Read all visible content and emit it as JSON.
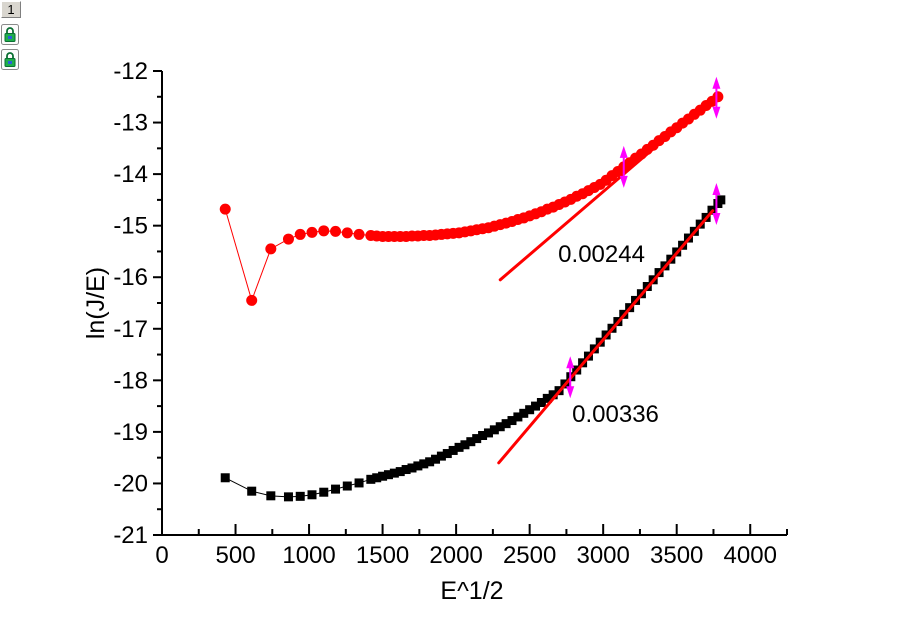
{
  "window": {
    "layer_button": "1",
    "icons": [
      "padlock-icon",
      "padlock-icon"
    ]
  },
  "chart_data": {
    "type": "scatter",
    "title": "",
    "xlabel": "E^1/2",
    "ylabel": "ln(J/E)",
    "xlim": [
      0,
      4250
    ],
    "ylim": [
      -21,
      -12
    ],
    "grid": false,
    "legend_position": "none",
    "x_major_ticks": [
      0,
      500,
      1000,
      1500,
      2000,
      2500,
      3000,
      3500,
      4000
    ],
    "x_minor_ticks": [
      250,
      750,
      1250,
      1750,
      2250,
      2750,
      3250,
      3750,
      4250
    ],
    "y_major_ticks": [
      -21,
      -20,
      -19,
      -18,
      -17,
      -16,
      -15,
      -14,
      -13,
      -12
    ],
    "y_minor_ticks": [
      -20.5,
      -19.5,
      -18.5,
      -17.5,
      -16.5,
      -15.5,
      -14.5,
      -13.5,
      -12.5
    ],
    "series": [
      {
        "name": "black-squares-series",
        "marker": "square",
        "color": "#000000",
        "line_width": 1,
        "marker_size": 9,
        "points": [
          [
            430,
            -19.89
          ],
          [
            610,
            -20.15
          ],
          [
            740,
            -20.24
          ],
          [
            860,
            -20.26
          ],
          [
            940,
            -20.25
          ],
          [
            1020,
            -20.22
          ],
          [
            1100,
            -20.17
          ],
          [
            1180,
            -20.11
          ],
          [
            1260,
            -20.05
          ],
          [
            1340,
            -19.99
          ],
          [
            1420,
            -19.92
          ],
          [
            1460,
            -19.89
          ],
          [
            1500,
            -19.86
          ],
          [
            1540,
            -19.83
          ],
          [
            1580,
            -19.8
          ],
          [
            1620,
            -19.77
          ],
          [
            1660,
            -19.73
          ],
          [
            1700,
            -19.7
          ],
          [
            1740,
            -19.66
          ],
          [
            1780,
            -19.62
          ],
          [
            1820,
            -19.58
          ],
          [
            1860,
            -19.53
          ],
          [
            1900,
            -19.47
          ],
          [
            1940,
            -19.42
          ],
          [
            1980,
            -19.36
          ],
          [
            2020,
            -19.3
          ],
          [
            2060,
            -19.25
          ],
          [
            2100,
            -19.19
          ],
          [
            2140,
            -19.13
          ],
          [
            2180,
            -19.07
          ],
          [
            2220,
            -19.02
          ],
          [
            2260,
            -18.96
          ],
          [
            2300,
            -18.9
          ],
          [
            2340,
            -18.84
          ],
          [
            2380,
            -18.78
          ],
          [
            2420,
            -18.71
          ],
          [
            2460,
            -18.64
          ],
          [
            2500,
            -18.57
          ],
          [
            2540,
            -18.5
          ],
          [
            2580,
            -18.43
          ],
          [
            2620,
            -18.35
          ],
          [
            2660,
            -18.28
          ],
          [
            2700,
            -18.2
          ],
          [
            2740,
            -18.07
          ],
          [
            2780,
            -17.93
          ],
          [
            2820,
            -17.8
          ],
          [
            2860,
            -17.66
          ],
          [
            2900,
            -17.53
          ],
          [
            2940,
            -17.39
          ],
          [
            2980,
            -17.26
          ],
          [
            3020,
            -17.12
          ],
          [
            3060,
            -16.99
          ],
          [
            3100,
            -16.86
          ],
          [
            3140,
            -16.72
          ],
          [
            3180,
            -16.59
          ],
          [
            3220,
            -16.45
          ],
          [
            3260,
            -16.32
          ],
          [
            3300,
            -16.18
          ],
          [
            3340,
            -16.05
          ],
          [
            3380,
            -15.91
          ],
          [
            3420,
            -15.78
          ],
          [
            3460,
            -15.65
          ],
          [
            3500,
            -15.51
          ],
          [
            3540,
            -15.38
          ],
          [
            3580,
            -15.24
          ],
          [
            3620,
            -15.11
          ],
          [
            3660,
            -14.97
          ],
          [
            3700,
            -14.84
          ],
          [
            3740,
            -14.7
          ],
          [
            3780,
            -14.57
          ],
          [
            3800,
            -14.5
          ]
        ]
      },
      {
        "name": "red-circles-series",
        "marker": "circle",
        "color": "#ff0000",
        "line_width": 1,
        "marker_size": 11,
        "points": [
          [
            430,
            -14.68
          ],
          [
            610,
            -16.45
          ],
          [
            740,
            -15.45
          ],
          [
            860,
            -15.26
          ],
          [
            940,
            -15.17
          ],
          [
            1020,
            -15.13
          ],
          [
            1100,
            -15.1
          ],
          [
            1180,
            -15.11
          ],
          [
            1260,
            -15.14
          ],
          [
            1340,
            -15.17
          ],
          [
            1420,
            -15.19
          ],
          [
            1460,
            -15.2
          ],
          [
            1500,
            -15.21
          ],
          [
            1540,
            -15.21
          ],
          [
            1580,
            -15.21
          ],
          [
            1620,
            -15.21
          ],
          [
            1660,
            -15.21
          ],
          [
            1700,
            -15.2
          ],
          [
            1740,
            -15.2
          ],
          [
            1780,
            -15.19
          ],
          [
            1820,
            -15.19
          ],
          [
            1860,
            -15.18
          ],
          [
            1900,
            -15.17
          ],
          [
            1940,
            -15.16
          ],
          [
            1980,
            -15.15
          ],
          [
            2020,
            -15.14
          ],
          [
            2060,
            -15.12
          ],
          [
            2100,
            -15.1
          ],
          [
            2140,
            -15.08
          ],
          [
            2180,
            -15.06
          ],
          [
            2220,
            -15.04
          ],
          [
            2260,
            -15.01
          ],
          [
            2300,
            -14.98
          ],
          [
            2340,
            -14.95
          ],
          [
            2380,
            -14.92
          ],
          [
            2420,
            -14.88
          ],
          [
            2460,
            -14.85
          ],
          [
            2500,
            -14.81
          ],
          [
            2540,
            -14.77
          ],
          [
            2580,
            -14.73
          ],
          [
            2620,
            -14.68
          ],
          [
            2660,
            -14.64
          ],
          [
            2700,
            -14.59
          ],
          [
            2740,
            -14.54
          ],
          [
            2780,
            -14.49
          ],
          [
            2820,
            -14.43
          ],
          [
            2860,
            -14.38
          ],
          [
            2900,
            -14.32
          ],
          [
            2940,
            -14.26
          ],
          [
            2980,
            -14.2
          ],
          [
            3020,
            -14.12
          ],
          [
            3060,
            -14.03
          ],
          [
            3100,
            -13.95
          ],
          [
            3140,
            -13.86
          ],
          [
            3180,
            -13.78
          ],
          [
            3220,
            -13.69
          ],
          [
            3260,
            -13.61
          ],
          [
            3300,
            -13.52
          ],
          [
            3340,
            -13.44
          ],
          [
            3380,
            -13.35
          ],
          [
            3420,
            -13.27
          ],
          [
            3460,
            -13.18
          ],
          [
            3500,
            -13.1
          ],
          [
            3540,
            -13.01
          ],
          [
            3580,
            -12.93
          ],
          [
            3620,
            -12.84
          ],
          [
            3660,
            -12.76
          ],
          [
            3700,
            -12.67
          ],
          [
            3740,
            -12.59
          ],
          [
            3780,
            -12.5
          ]
        ]
      }
    ],
    "fit_lines": [
      {
        "name": "fit-line-red-series",
        "color": "#ff0000",
        "width": 3,
        "from": [
          2300,
          -16.05
        ],
        "to": [
          3770,
          -12.46
        ],
        "slope": "0.00244"
      },
      {
        "name": "fit-line-black-series",
        "color": "#ff0000",
        "width": 3,
        "from": [
          2290,
          -19.6
        ],
        "to": [
          3745,
          -14.71
        ],
        "slope": "0.00336"
      }
    ],
    "annotations": [
      {
        "text": "0.00244",
        "x": 2694,
        "y": -15.53,
        "color": "#000000",
        "font_size": 24
      },
      {
        "text": "0.00336",
        "x": 2789,
        "y": -18.63,
        "color": "#000000",
        "font_size": 24
      }
    ],
    "range_markers": [
      {
        "shape": "vertical-double-arrow",
        "color": "#ff00ff",
        "x": 3140,
        "y": -13.86
      },
      {
        "shape": "vertical-double-arrow",
        "color": "#ff00ff",
        "x": 3770,
        "y": -12.52
      },
      {
        "shape": "vertical-double-arrow",
        "color": "#ff00ff",
        "x": 2776,
        "y": -17.94
      },
      {
        "shape": "vertical-double-arrow",
        "color": "#ff00ff",
        "x": 3770,
        "y": -14.58
      }
    ]
  }
}
